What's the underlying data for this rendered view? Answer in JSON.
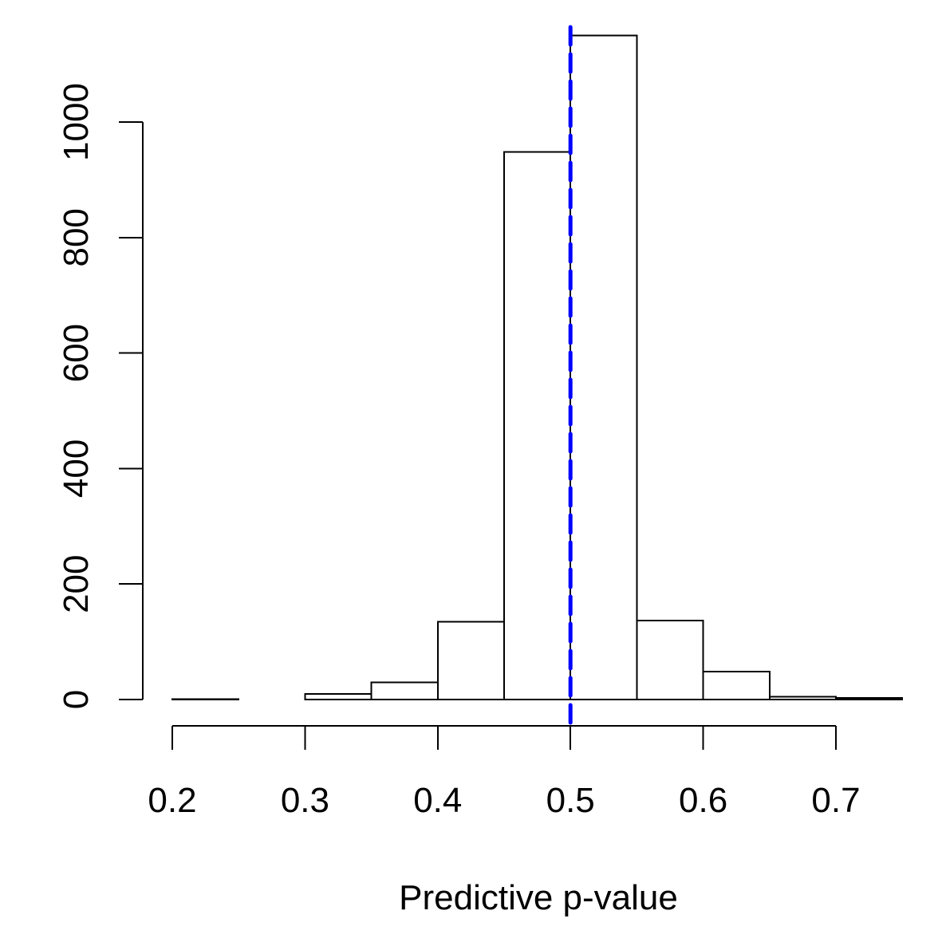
{
  "chart_data": {
    "type": "bar",
    "title": "",
    "xlabel": "Predictive p-value",
    "ylabel": "",
    "bins": [
      {
        "x0": 0.2,
        "x1": 0.25,
        "count": 1
      },
      {
        "x0": 0.25,
        "x1": 0.3,
        "count": 0
      },
      {
        "x0": 0.3,
        "x1": 0.35,
        "count": 10
      },
      {
        "x0": 0.35,
        "x1": 0.4,
        "count": 30
      },
      {
        "x0": 0.4,
        "x1": 0.45,
        "count": 135
      },
      {
        "x0": 0.45,
        "x1": 0.5,
        "count": 948
      },
      {
        "x0": 0.5,
        "x1": 0.55,
        "count": 1150
      },
      {
        "x0": 0.55,
        "x1": 0.6,
        "count": 137
      },
      {
        "x0": 0.6,
        "x1": 0.65,
        "count": 48
      },
      {
        "x0": 0.65,
        "x1": 0.7,
        "count": 5
      },
      {
        "x0": 0.7,
        "x1": 0.75,
        "count": 3
      }
    ],
    "xlim": [
      0.2,
      0.75
    ],
    "ylim": [
      0,
      1150
    ],
    "x_ticks": [
      0.2,
      0.3,
      0.4,
      0.5,
      0.6,
      0.7
    ],
    "x_tick_labels": [
      "0.2",
      "0.3",
      "0.4",
      "0.5",
      "0.6",
      "0.7"
    ],
    "y_ticks": [
      0,
      200,
      400,
      600,
      800,
      1000
    ],
    "y_tick_labels": [
      "0",
      "200",
      "400",
      "600",
      "800",
      "1000"
    ],
    "reference_line": {
      "x": 0.5,
      "color": "#0000ff",
      "style": "dashed"
    },
    "grid": false,
    "legend": "none"
  }
}
